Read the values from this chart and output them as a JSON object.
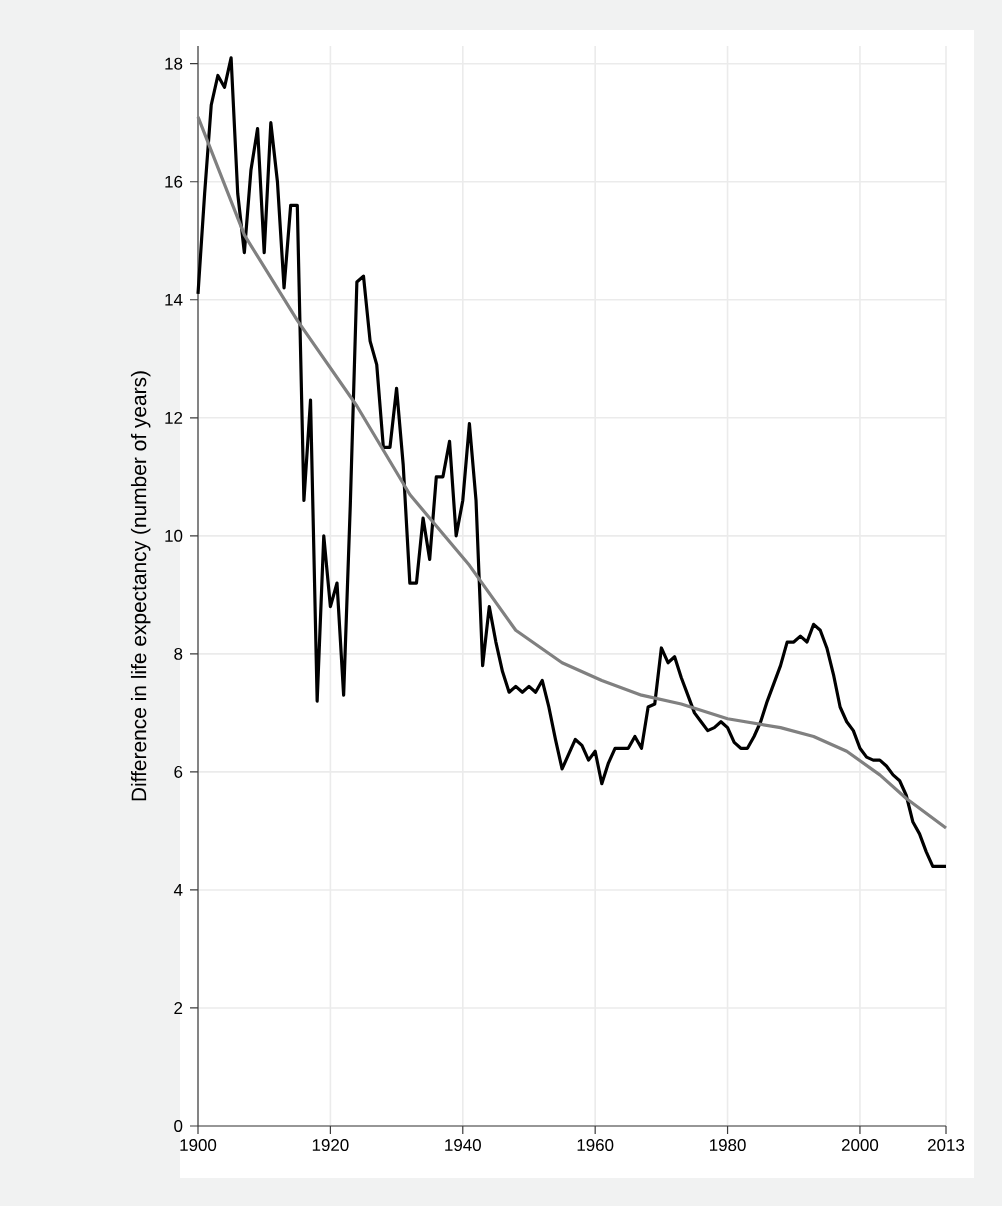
{
  "chart_data": {
    "type": "line",
    "ylabel": "Difference in life expectancy (number of years)",
    "xlim": [
      1900,
      2013
    ],
    "xticks": [
      1900,
      1920,
      1940,
      1960,
      1980,
      2000,
      2013
    ],
    "ylim": [
      0,
      18.3
    ],
    "yticks": [
      0,
      2,
      4,
      6,
      8,
      10,
      12,
      14,
      16,
      18
    ],
    "grid": true,
    "line_style": "solid",
    "marker": "none",
    "series": [
      {
        "color": "#000000",
        "x": [
          1900,
          1901,
          1902,
          1903,
          1904,
          1905,
          1906,
          1907,
          1908,
          1909,
          1910,
          1911,
          1912,
          1913,
          1914,
          1915,
          1916,
          1917,
          1918,
          1919,
          1920,
          1921,
          1922,
          1923,
          1924,
          1925,
          1926,
          1927,
          1928,
          1929,
          1930,
          1931,
          1932,
          1933,
          1934,
          1935,
          1936,
          1937,
          1938,
          1939,
          1940,
          1941,
          1942,
          1943,
          1944,
          1945,
          1946,
          1947,
          1948,
          1949,
          1950,
          1951,
          1952,
          1953,
          1954,
          1955,
          1956,
          1957,
          1958,
          1959,
          1960,
          1961,
          1962,
          1963,
          1964,
          1965,
          1966,
          1967,
          1968,
          1969,
          1970,
          1971,
          1972,
          1973,
          1974,
          1975,
          1976,
          1977,
          1978,
          1979,
          1980,
          1981,
          1982,
          1983,
          1984,
          1985,
          1986,
          1987,
          1988,
          1989,
          1990,
          1991,
          1992,
          1993,
          1994,
          1995,
          1996,
          1997,
          1998,
          1999,
          2000,
          2001,
          2002,
          2003,
          2004,
          2005,
          2006,
          2007,
          2008,
          2009,
          2010,
          2011,
          2012,
          2013
        ],
        "values": [
          14.1,
          15.8,
          17.3,
          17.8,
          17.6,
          18.1,
          15.8,
          14.8,
          16.2,
          16.9,
          14.8,
          17.0,
          16.0,
          14.2,
          15.6,
          15.6,
          10.6,
          12.3,
          7.2,
          10.0,
          8.8,
          9.2,
          7.3,
          10.5,
          14.3,
          14.4,
          13.3,
          12.9,
          11.5,
          11.5,
          12.5,
          11.2,
          9.2,
          9.2,
          10.3,
          9.6,
          11.0,
          11.0,
          11.6,
          10.0,
          10.6,
          11.9,
          10.6,
          7.8,
          8.8,
          8.2,
          7.7,
          7.35,
          7.45,
          7.35,
          7.45,
          7.35,
          7.55,
          7.1,
          6.55,
          6.05,
          6.3,
          6.55,
          6.45,
          6.2,
          6.35,
          5.8,
          6.15,
          6.4,
          6.4,
          6.4,
          6.6,
          6.4,
          7.1,
          7.15,
          8.1,
          7.85,
          7.95,
          7.6,
          7.3,
          7.0,
          6.85,
          6.7,
          6.75,
          6.85,
          6.75,
          6.5,
          6.4,
          6.4,
          6.6,
          6.85,
          7.2,
          7.5,
          7.8,
          8.2,
          8.2,
          8.3,
          8.2,
          8.5,
          8.4,
          8.1,
          7.65,
          7.1,
          6.85,
          6.7,
          6.4,
          6.25,
          6.2,
          6.2,
          6.1,
          5.95,
          5.85,
          5.6,
          5.15,
          4.95,
          4.65,
          4.4,
          4.4,
          4.4
        ]
      },
      {
        "color": "#808080",
        "x": [
          1900,
          1907,
          1915,
          1924,
          1932,
          1941,
          1948,
          1955,
          1961,
          1967,
          1973,
          1980,
          1988,
          1993,
          1998,
          2003,
          2007,
          2013
        ],
        "values": [
          17.1,
          15.1,
          13.65,
          12.2,
          10.7,
          9.5,
          8.4,
          7.85,
          7.55,
          7.3,
          7.15,
          6.9,
          6.75,
          6.6,
          6.35,
          5.95,
          5.55,
          5.05
        ]
      }
    ]
  }
}
